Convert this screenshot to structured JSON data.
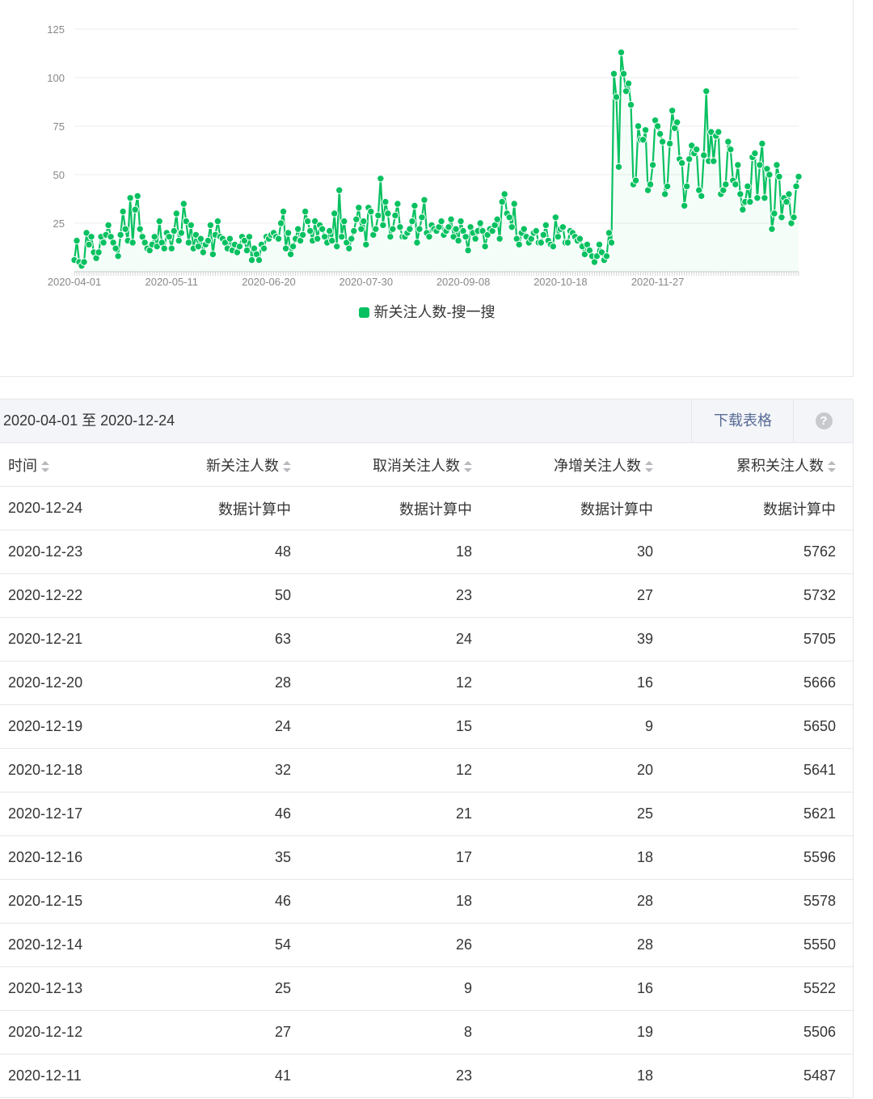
{
  "chart_data": {
    "type": "line",
    "title": "",
    "xlabel": "",
    "ylabel": "",
    "ylim": [
      0,
      125
    ],
    "y_ticks": [
      25,
      50,
      75,
      100,
      125
    ],
    "x_tick_labels": [
      "2020-04-01",
      "2020-05-11",
      "2020-06-20",
      "2020-07-30",
      "2020-09-08",
      "2020-10-18",
      "2020-11-27"
    ],
    "x_start": "2020-04-01",
    "x_end": "2020-12-23",
    "grid": true,
    "legend": "bottom-center",
    "series": [
      {
        "name": "新关注人数-搜一搜",
        "color": "#07c160",
        "values": [
          6,
          16,
          5,
          3,
          5,
          20,
          14,
          18,
          10,
          7,
          10,
          18,
          15,
          19,
          24,
          18,
          15,
          12,
          8,
          19,
          31,
          22,
          16,
          38,
          15,
          32,
          39,
          22,
          18,
          15,
          12,
          11,
          14,
          18,
          13,
          26,
          15,
          12,
          20,
          18,
          12,
          21,
          30,
          16,
          20,
          35,
          26,
          15,
          24,
          12,
          19,
          13,
          17,
          10,
          14,
          16,
          24,
          9,
          19,
          26,
          18,
          17,
          15,
          12,
          17,
          11,
          14,
          10,
          13,
          18,
          16,
          11,
          18,
          6,
          12,
          9,
          6,
          14,
          12,
          18,
          17,
          19,
          20,
          18,
          17,
          25,
          31,
          12,
          20,
          9,
          13,
          17,
          22,
          16,
          19,
          31,
          26,
          21,
          16,
          26,
          17,
          24,
          22,
          18,
          15,
          21,
          16,
          30,
          13,
          42,
          18,
          26,
          15,
          12,
          17,
          21,
          27,
          33,
          22,
          26,
          14,
          33,
          31,
          19,
          22,
          29,
          48,
          24,
          36,
          30,
          18,
          22,
          29,
          35,
          23,
          18,
          18,
          20,
          22,
          26,
          34,
          15,
          22,
          28,
          37,
          20,
          18,
          24,
          22,
          21,
          23,
          26,
          19,
          21,
          23,
          27,
          18,
          22,
          16,
          26,
          21,
          18,
          11,
          23,
          20,
          17,
          21,
          25,
          21,
          13,
          19,
          22,
          21,
          24,
          27,
          17,
          36,
          40,
          30,
          28,
          23,
          35,
          17,
          14,
          20,
          22,
          18,
          15,
          17,
          20,
          21,
          15,
          15,
          19,
          24,
          16,
          14,
          13,
          28,
          18,
          22,
          23,
          15,
          15,
          21,
          20,
          18,
          16,
          17,
          13,
          9,
          14,
          11,
          8,
          5,
          8,
          14,
          10,
          6,
          8,
          20,
          15,
          102,
          90,
          54,
          113,
          102,
          93,
          97,
          86,
          45,
          47,
          75,
          68,
          68,
          73,
          42,
          45,
          55,
          78,
          75,
          71,
          67,
          40,
          44,
          66,
          83,
          74,
          77,
          58,
          56,
          34,
          44,
          58,
          65,
          61,
          63,
          42,
          39,
          60,
          93,
          57,
          72,
          57,
          70,
          72,
          40,
          42,
          45,
          67,
          63,
          47,
          45,
          55,
          40,
          32,
          36,
          44,
          36,
          59,
          61,
          38,
          55,
          66,
          38,
          53,
          50,
          22,
          30,
          55,
          49,
          28,
          38,
          36,
          40,
          25,
          28,
          44,
          49
        ]
      }
    ]
  },
  "table": {
    "date_range": "2020-04-01 至 2020-12-24",
    "download_label": "下载表格",
    "help_label": "?",
    "columns": [
      "时间",
      "新关注人数",
      "取消关注人数",
      "净增关注人数",
      "累积关注人数"
    ],
    "rows": [
      [
        "2020-12-24",
        "数据计算中",
        "数据计算中",
        "数据计算中",
        "数据计算中"
      ],
      [
        "2020-12-23",
        "48",
        "18",
        "30",
        "5762"
      ],
      [
        "2020-12-22",
        "50",
        "23",
        "27",
        "5732"
      ],
      [
        "2020-12-21",
        "63",
        "24",
        "39",
        "5705"
      ],
      [
        "2020-12-20",
        "28",
        "12",
        "16",
        "5666"
      ],
      [
        "2020-12-19",
        "24",
        "15",
        "9",
        "5650"
      ],
      [
        "2020-12-18",
        "32",
        "12",
        "20",
        "5641"
      ],
      [
        "2020-12-17",
        "46",
        "21",
        "25",
        "5621"
      ],
      [
        "2020-12-16",
        "35",
        "17",
        "18",
        "5596"
      ],
      [
        "2020-12-15",
        "46",
        "18",
        "28",
        "5578"
      ],
      [
        "2020-12-14",
        "54",
        "26",
        "28",
        "5550"
      ],
      [
        "2020-12-13",
        "25",
        "9",
        "16",
        "5522"
      ],
      [
        "2020-12-12",
        "27",
        "8",
        "19",
        "5506"
      ],
      [
        "2020-12-11",
        "41",
        "23",
        "18",
        "5487"
      ]
    ]
  }
}
